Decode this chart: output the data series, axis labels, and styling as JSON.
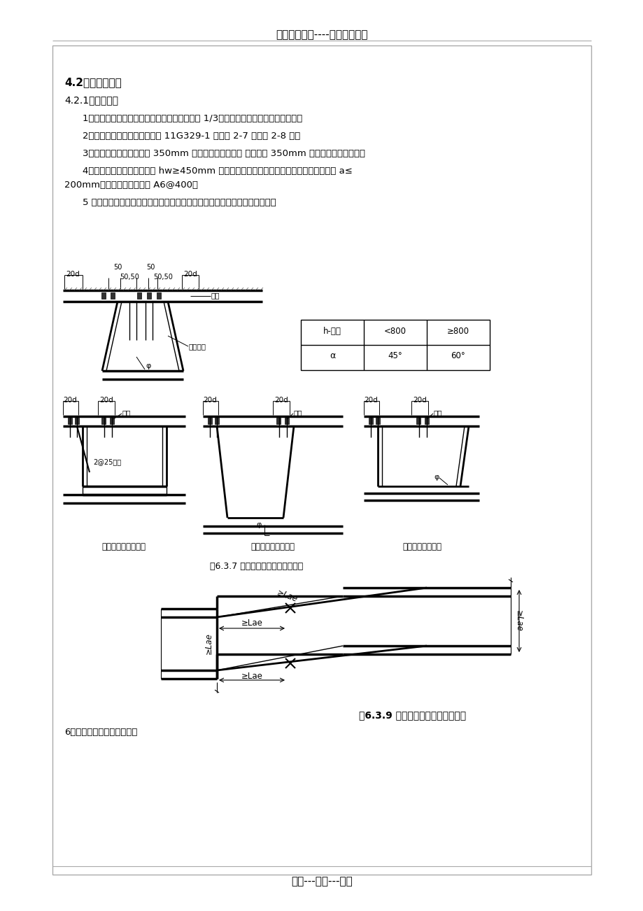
{
  "title_header": "精选优质文档----倾情为你奉上",
  "footer": "专心---专注---专业",
  "section_title": "4.2、梁钢筋绑扎",
  "subsection": "4.2.1构造要求：",
  "item1": "1、框架梁纵向钢筋接头位置：上部纵筋在跨中 1/3跨度范围，下部纵筋在支座范围。",
  "item2": "2、框架梁纵向钢筋构造做法详 11G329-1 图集第 2-7 页和第 2-8 页。",
  "item3": "3、未注明的梁宽大于等于 350mm 时，梁箍筋为四肢箍 梁宽小于 350mm 时，梁箍筋为双支箍。",
  "item4a": "4、框架梁侧面纵向钢筋构造 hw≥450mm 时，在梁的两个侧面沿高度配置构造钢筋，间距 a≤",
  "item4b": "200mm。未注明的拉筋均为 A6@400。",
  "item5": "5 、主梁与次梁支座处箍筋应贯通布置，附加箍筋、附加吊筋构造做法详图：",
  "fig637_caption": "图6.3.7 梁附加吊筋、箍筋做法示意",
  "fig639_caption": "图6.3.9 变标高框架梁钢筋做法示意",
  "item6": "6、变标高框架梁钢筋做法：",
  "label_diag1": "次梁高于主梁做法一",
  "label_diag2": "次梁高于主梁做法二",
  "label_diag3": "悬挑梁端吊筋做法",
  "bg_color": "#ffffff"
}
